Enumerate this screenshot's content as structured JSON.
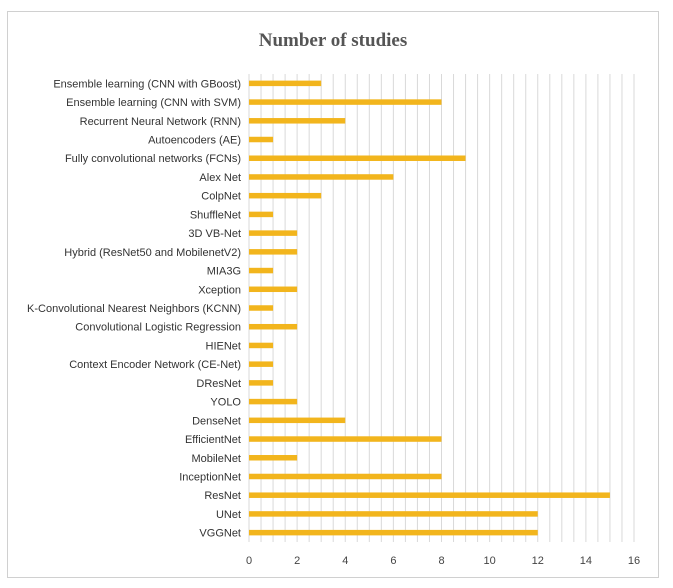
{
  "chart_data": {
    "type": "bar",
    "orientation": "horizontal",
    "title": "Number of studies",
    "xlabel": "",
    "ylabel": "",
    "xlim": [
      0,
      16
    ],
    "xticks": [
      0,
      2,
      4,
      6,
      8,
      10,
      12,
      14,
      16
    ],
    "grid": "vertical",
    "bar_color": "#F2B51D",
    "grid_color": "#d9d9d9",
    "categories": [
      "Ensemble learning (CNN with GBoost)",
      "Ensemble learning (CNN with SVM)",
      "Recurrent Neural Network (RNN)",
      "Autoencoders (AE)",
      "Fully convolutional networks (FCNs)",
      "Alex Net",
      "ColpNet",
      "ShuffleNet",
      "3D VB-Net",
      "Hybrid (ResNet50 and MobilenetV2)",
      "MIA3G",
      "Xception",
      "K-Convolutional Nearest Neighbors (KCNN)",
      "Convolutional Logistic Regression",
      "HIENet",
      "Context Encoder Network (CE-Net)",
      "DResNet",
      "YOLO",
      "DenseNet",
      "EfficientNet",
      "MobileNet",
      "InceptionNet",
      "ResNet",
      "UNet",
      "VGGNet"
    ],
    "values": [
      3,
      8,
      4,
      1,
      9,
      6,
      3,
      1,
      2,
      2,
      1,
      2,
      1,
      2,
      1,
      1,
      1,
      2,
      4,
      8,
      2,
      8,
      15,
      12,
      12
    ]
  }
}
